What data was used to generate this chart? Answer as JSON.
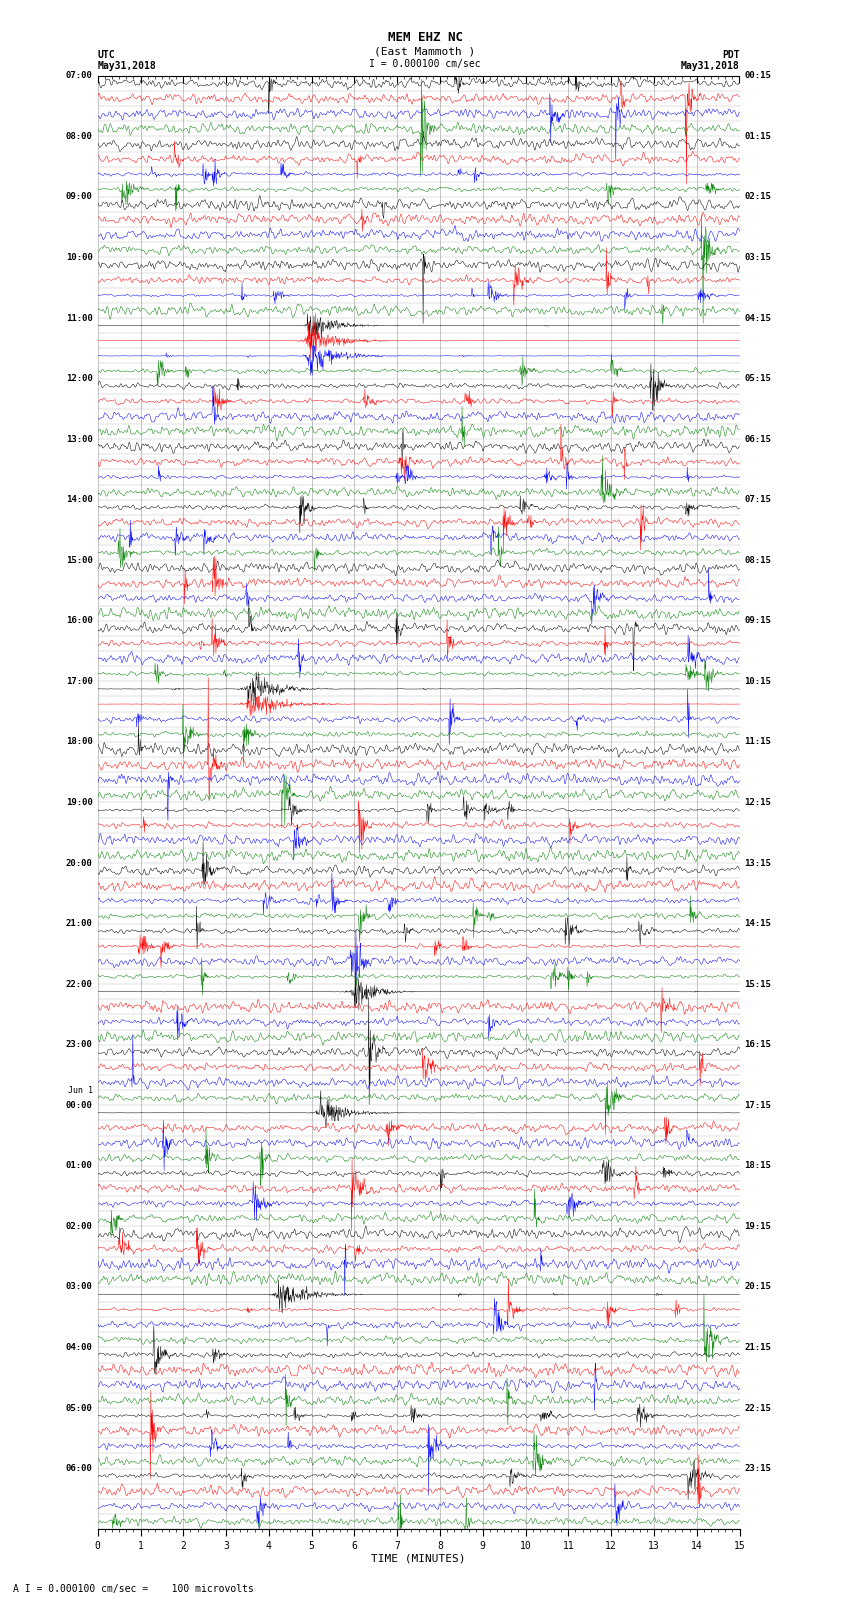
{
  "title_line1": "MEM EHZ NC",
  "title_line2": "(East Mammoth )",
  "scale_label": "I = 0.000100 cm/sec",
  "bottom_label": "A I = 0.000100 cm/sec =    100 microvolts",
  "xlabel": "TIME (MINUTES)",
  "left_header_line1": "UTC",
  "left_header_line2": "May31,2018",
  "right_header_line1": "PDT",
  "right_header_line2": "May31,2018",
  "utc_times": [
    "07:00",
    "",
    "",
    "",
    "08:00",
    "",
    "",
    "",
    "09:00",
    "",
    "",
    "",
    "10:00",
    "",
    "",
    "",
    "11:00",
    "",
    "",
    "",
    "12:00",
    "",
    "",
    "",
    "13:00",
    "",
    "",
    "",
    "14:00",
    "",
    "",
    "",
    "15:00",
    "",
    "",
    "",
    "16:00",
    "",
    "",
    "",
    "17:00",
    "",
    "",
    "",
    "18:00",
    "",
    "",
    "",
    "19:00",
    "",
    "",
    "",
    "20:00",
    "",
    "",
    "",
    "21:00",
    "",
    "",
    "",
    "22:00",
    "",
    "",
    "",
    "23:00",
    "",
    "",
    "Jun 1",
    "00:00",
    "",
    "",
    "",
    "01:00",
    "",
    "",
    "",
    "02:00",
    "",
    "",
    "",
    "03:00",
    "",
    "",
    "",
    "04:00",
    "",
    "",
    "",
    "05:00",
    "",
    "",
    "",
    "06:00",
    ""
  ],
  "pdt_times": [
    "00:15",
    "",
    "",
    "",
    "01:15",
    "",
    "",
    "",
    "02:15",
    "",
    "",
    "",
    "03:15",
    "",
    "",
    "",
    "04:15",
    "",
    "",
    "",
    "05:15",
    "",
    "",
    "",
    "06:15",
    "",
    "",
    "",
    "07:15",
    "",
    "",
    "",
    "08:15",
    "",
    "",
    "",
    "09:15",
    "",
    "",
    "",
    "10:15",
    "",
    "",
    "",
    "11:15",
    "",
    "",
    "",
    "12:15",
    "",
    "",
    "",
    "13:15",
    "",
    "",
    "",
    "14:15",
    "",
    "",
    "",
    "15:15",
    "",
    "",
    "",
    "16:15",
    "",
    "",
    "",
    "17:15",
    "",
    "",
    "",
    "18:15",
    "",
    "",
    "",
    "19:15",
    "",
    "",
    "",
    "20:15",
    "",
    "",
    "",
    "21:15",
    "",
    "",
    "",
    "22:15",
    "",
    "",
    "",
    "23:15",
    ""
  ],
  "trace_colors": [
    "black",
    "red",
    "blue",
    "green"
  ],
  "bg_color": "#ffffff",
  "grid_color": "#999999",
  "num_rows": 96,
  "minutes": 15,
  "fig_width": 8.5,
  "fig_height": 16.13,
  "seed": 42,
  "amplitude": 0.42,
  "noise_base": 0.06
}
